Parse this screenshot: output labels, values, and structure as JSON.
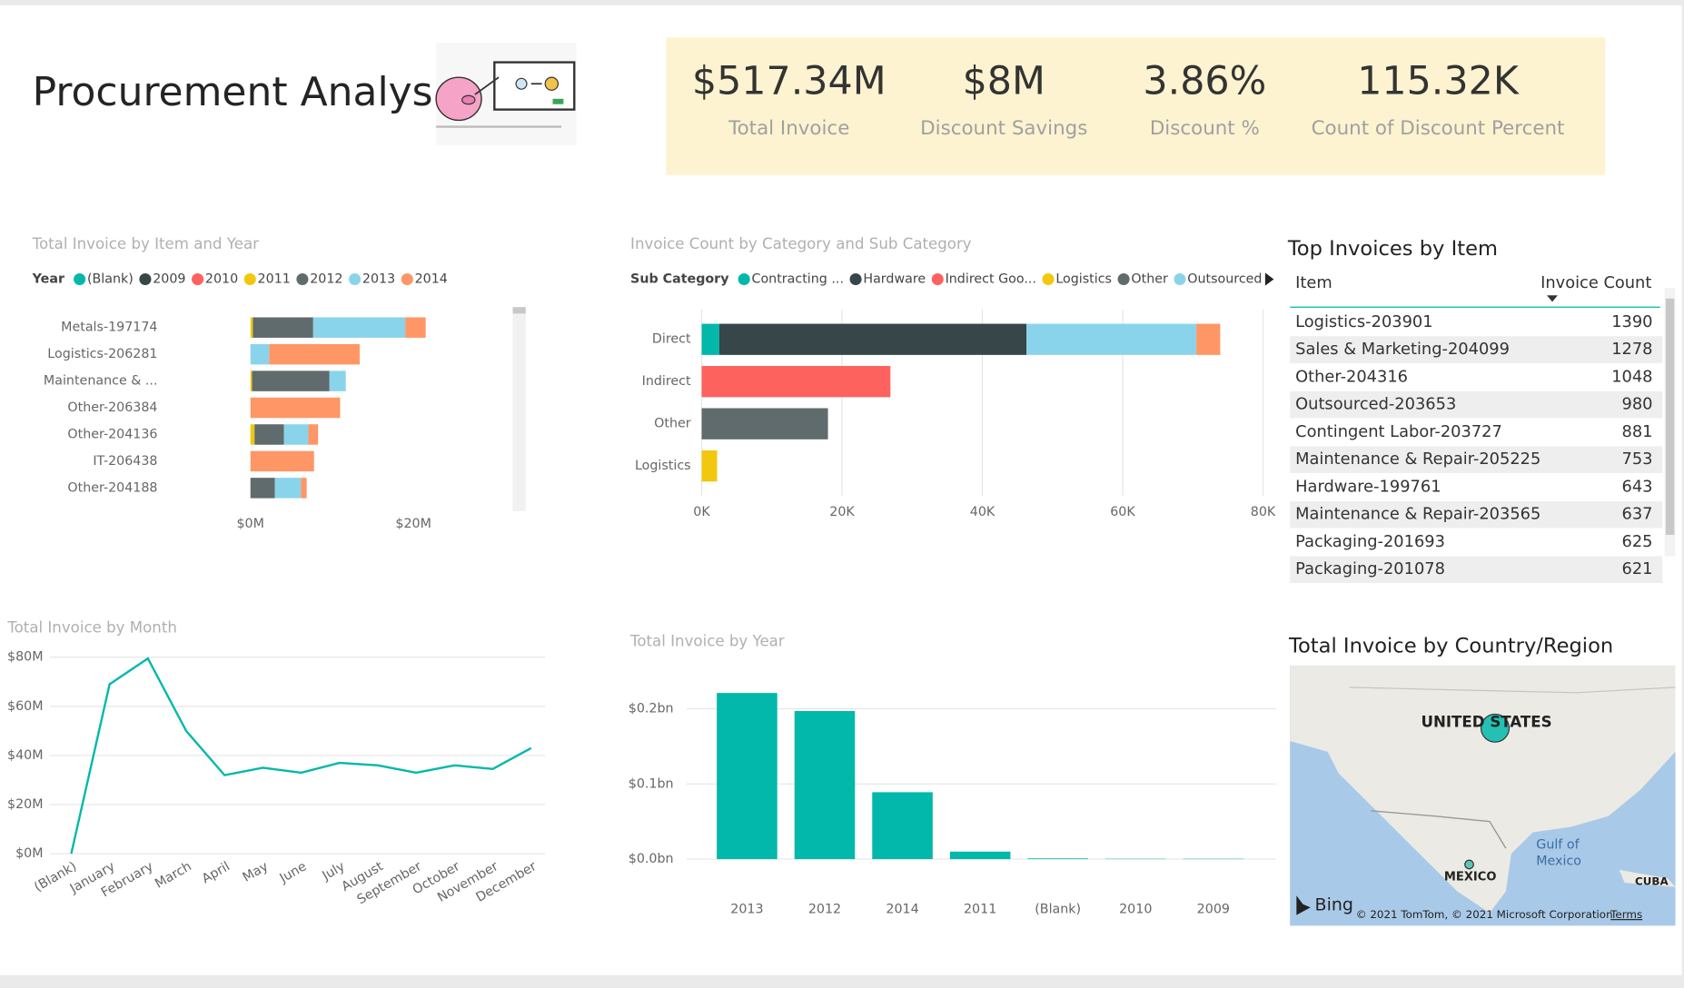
{
  "header": {
    "title": "Procurement Analysis"
  },
  "kpis": [
    {
      "value": "$517.34M",
      "label": "Total Invoice"
    },
    {
      "value": "$8M",
      "label": "Discount Savings"
    },
    {
      "value": "3.86%",
      "label": "Discount %"
    },
    {
      "value": "115.32K",
      "label": "Count of Discount Percent"
    }
  ],
  "chart_data": [
    {
      "type": "bar",
      "orientation": "horizontal",
      "stacked": true,
      "title": "Total Invoice by Item and Year",
      "legend_title": "Year",
      "categories": [
        "Metals-197174",
        "Logistics-206281",
        "Maintenance & ...",
        "Other-206384",
        "Other-204136",
        "IT-206438",
        "Other-204188"
      ],
      "series": [
        {
          "name": "(Blank)",
          "color": "#01B8AA",
          "values": [
            0,
            0,
            0,
            0,
            0,
            0,
            0
          ]
        },
        {
          "name": "2009",
          "color": "#374649",
          "values": [
            0,
            0,
            0,
            0,
            0,
            0,
            0
          ]
        },
        {
          "name": "2010",
          "color": "#FD625E",
          "values": [
            0,
            0,
            0,
            0,
            0,
            0,
            0
          ]
        },
        {
          "name": "2011",
          "color": "#F2C80F",
          "values": [
            0.3,
            0,
            0.2,
            0,
            0.5,
            0,
            0
          ]
        },
        {
          "name": "2012",
          "color": "#5F6B6D",
          "values": [
            7.4,
            0,
            9.5,
            0,
            3.6,
            0,
            3.0
          ]
        },
        {
          "name": "2013",
          "color": "#8AD4EB",
          "values": [
            11.3,
            2.3,
            2.0,
            0,
            3.0,
            0,
            3.2
          ]
        },
        {
          "name": "2014",
          "color": "#FE9666",
          "values": [
            2.5,
            11.1,
            0,
            11.0,
            1.2,
            7.8,
            0.7
          ]
        }
      ],
      "xlim": [
        0,
        30
      ],
      "xticks": [
        {
          "value": 0,
          "label": "$0M"
        },
        {
          "value": 20,
          "label": "$20M"
        }
      ],
      "grid": false
    },
    {
      "type": "bar",
      "orientation": "horizontal",
      "stacked": true,
      "title": "Invoice Count by Category and Sub Category",
      "legend_title": "Sub Category",
      "categories": [
        "Direct",
        "Indirect",
        "Other",
        "Logistics"
      ],
      "series": [
        {
          "name": "Contracting ...",
          "color": "#01B8AA",
          "values": [
            2500,
            0,
            0,
            0
          ]
        },
        {
          "name": "Hardware",
          "color": "#374649",
          "values": [
            43800,
            0,
            0,
            0
          ]
        },
        {
          "name": "Indirect Goo...",
          "color": "#FD625E",
          "values": [
            0,
            26900,
            0,
            0
          ]
        },
        {
          "name": "Logistics",
          "color": "#F2C80F",
          "values": [
            0,
            0,
            0,
            2200
          ]
        },
        {
          "name": "Other",
          "color": "#5F6B6D",
          "values": [
            0,
            0,
            18000,
            0
          ]
        },
        {
          "name": "Outsourced",
          "color": "#8AD4EB",
          "values": [
            24200,
            0,
            0,
            0
          ]
        },
        {
          "color": "#FE9666",
          "values": [
            3400,
            0,
            0,
            0
          ]
        }
      ],
      "xlim": [
        0,
        80000
      ],
      "xticks": [
        {
          "value": 0,
          "label": "0K"
        },
        {
          "value": 20000,
          "label": "20K"
        },
        {
          "value": 40000,
          "label": "40K"
        },
        {
          "value": 60000,
          "label": "60K"
        },
        {
          "value": 80000,
          "label": "80K"
        }
      ],
      "grid": true
    },
    {
      "type": "line",
      "title": "Total Invoice by Month",
      "categories": [
        "(Blank)",
        "January",
        "February",
        "March",
        "April",
        "May",
        "June",
        "July",
        "August",
        "September",
        "October",
        "November",
        "December"
      ],
      "values": [
        0,
        69,
        79.5,
        50,
        32,
        35,
        33,
        37,
        36,
        33,
        36,
        34.5,
        43
      ],
      "color": "#01B8AA",
      "ylim": [
        0,
        80
      ],
      "yticks": [
        {
          "value": 0,
          "label": "$0M"
        },
        {
          "value": 20,
          "label": "$20M"
        },
        {
          "value": 40,
          "label": "$40M"
        },
        {
          "value": 60,
          "label": "$60M"
        },
        {
          "value": 80,
          "label": "$80M"
        }
      ],
      "grid": true
    },
    {
      "type": "bar",
      "title": "Total Invoice by Year",
      "categories": [
        "2013",
        "2012",
        "2014",
        "2011",
        "(Blank)",
        "2010",
        "2009"
      ],
      "values": [
        0.221,
        0.197,
        0.089,
        0.01,
        0.001,
        0.0005,
        0.0005
      ],
      "color": "#01B8AA",
      "ylim": [
        0,
        0.23
      ],
      "yticks": [
        {
          "value": 0,
          "label": "$0.0bn"
        },
        {
          "value": 0.1,
          "label": "$0.1bn"
        },
        {
          "value": 0.2,
          "label": "$0.2bn"
        }
      ],
      "grid": true
    }
  ],
  "table": {
    "title": "Top Invoices by Item",
    "columns": [
      "Item",
      "Invoice Count"
    ],
    "rows": [
      [
        "Logistics-203901",
        1390
      ],
      [
        "Sales & Marketing-204099",
        1278
      ],
      [
        "Other-204316",
        1048
      ],
      [
        "Outsourced-203653",
        980
      ],
      [
        "Contingent Labor-203727",
        881
      ],
      [
        "Maintenance & Repair-205225",
        753
      ],
      [
        "Hardware-199761",
        643
      ],
      [
        "Maintenance & Repair-203565",
        637
      ],
      [
        "Packaging-201693",
        625
      ],
      [
        "Packaging-201078",
        621
      ]
    ]
  },
  "map": {
    "title": "Total Invoice by Country/Region",
    "labels": [
      "UNITED STATES",
      "MEXICO",
      "Gulf of",
      "Mexico",
      "CUBA"
    ],
    "provider": "Bing",
    "copyright": "© 2021 TomTom, © 2021 Microsoft Corporation",
    "terms": "Terms"
  }
}
